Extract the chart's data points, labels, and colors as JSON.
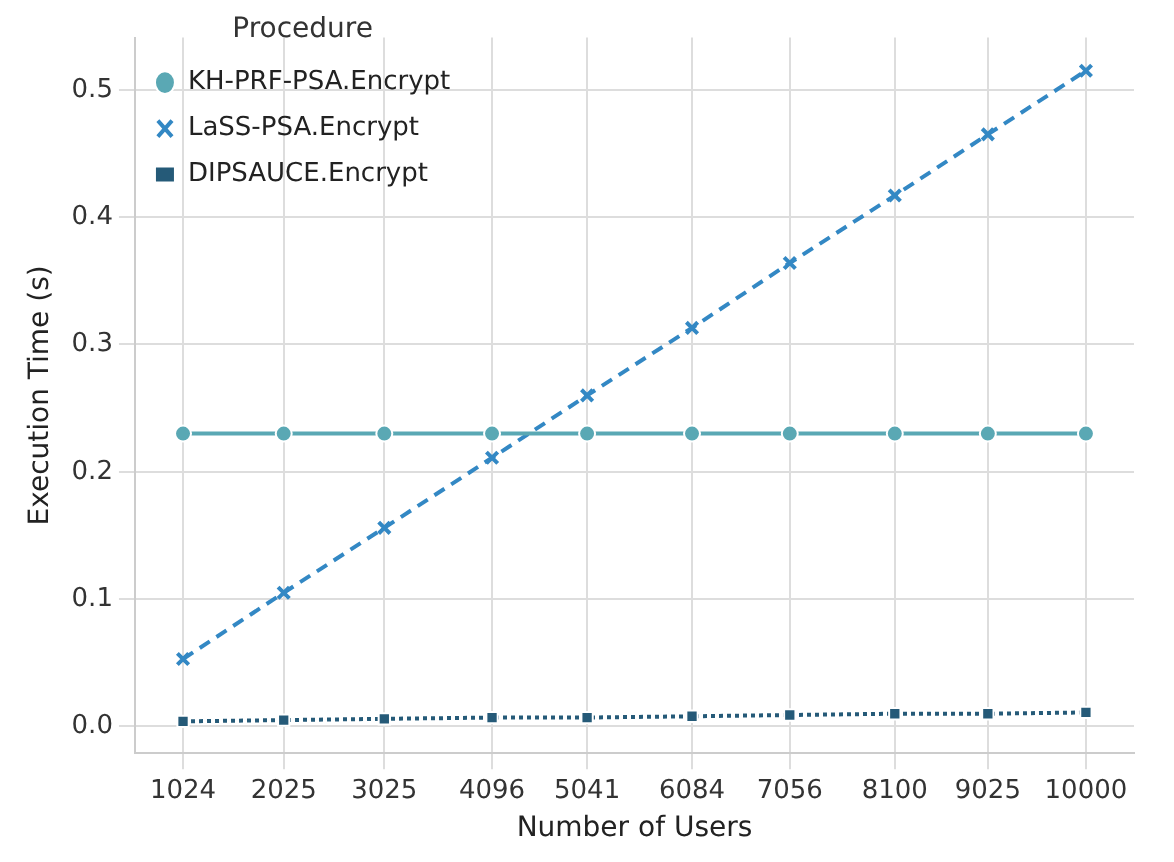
{
  "chart_data": {
    "type": "line",
    "xlabel": "Number of Users",
    "ylabel": "Execution Time (s)",
    "legend_title": "Procedure",
    "legend": "top left",
    "grid": true,
    "x": [
      1024,
      2025,
      3025,
      4096,
      5041,
      6084,
      7056,
      8100,
      9025,
      10000
    ],
    "xlim": [
      546,
      10478
    ],
    "xticks": [
      1024,
      2025,
      3025,
      4096,
      5041,
      6084,
      7056,
      8100,
      9025,
      10000
    ],
    "ylim": [
      -0.021,
      0.541
    ],
    "yticks": [
      {
        "value": 0,
        "label": "0.0"
      },
      0.1,
      0.2,
      0.3,
      0.4,
      0.5
    ],
    "series": [
      {
        "name": "KH-PRF-PSA.Encrypt",
        "color": "#5aa8b4",
        "marker": "circle",
        "line_style": "solid",
        "values": [
          0.23,
          0.23,
          0.23,
          0.23,
          0.23,
          0.23,
          0.23,
          0.23,
          0.23,
          0.23
        ]
      },
      {
        "name": "LaSS-PSA.Encrypt",
        "color": "#3388c4",
        "marker": "cross",
        "line_style": "dashed",
        "values": [
          0.053,
          0.105,
          0.156,
          0.211,
          0.26,
          0.313,
          0.364,
          0.417,
          0.465,
          0.515
        ]
      },
      {
        "name": "DIPSAUCE.Encrypt",
        "color": "#255a78",
        "marker": "square",
        "line_style": "dotted",
        "values": [
          0.004,
          0.005,
          0.006,
          0.007,
          0.007,
          0.008,
          0.009,
          0.01,
          0.01,
          0.011
        ]
      }
    ]
  }
}
